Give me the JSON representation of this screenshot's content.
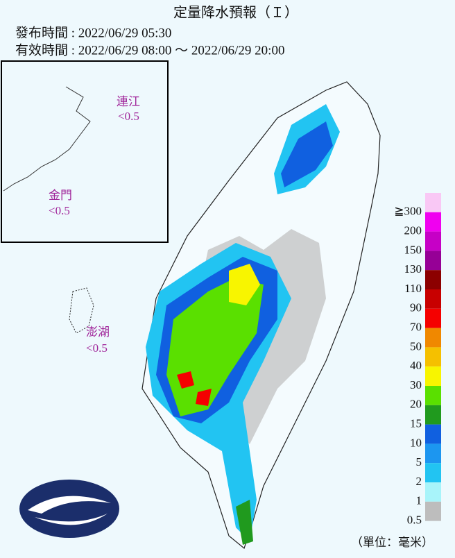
{
  "header": {
    "title": "定量降水預報（Ｉ）",
    "issued": "發布時間 : 2022/06/29 05:30",
    "valid": "有效時間 : 2022/06/29 08:00 ～ 2022/06/29 20:00"
  },
  "islands": [
    {
      "name": "連江",
      "value": "<0.5"
    },
    {
      "name": "金門",
      "value": "<0.5"
    },
    {
      "name": "澎湖",
      "value": "<0.5"
    }
  ],
  "legend": {
    "unit": "（單位：毫米）",
    "entries": [
      {
        "label": "≧300",
        "color": "#f9c8f5"
      },
      {
        "label": "200",
        "color": "#f000f0"
      },
      {
        "label": "150",
        "color": "#c600c6"
      },
      {
        "label": "130",
        "color": "#960096"
      },
      {
        "label": "110",
        "color": "#8c0000"
      },
      {
        "label": "90",
        "color": "#c80000"
      },
      {
        "label": "70",
        "color": "#f50000"
      },
      {
        "label": "50",
        "color": "#f08800"
      },
      {
        "label": "40",
        "color": "#f5c000"
      },
      {
        "label": "30",
        "color": "#f8f500"
      },
      {
        "label": "20",
        "color": "#5ae000"
      },
      {
        "label": "15",
        "color": "#209a1e"
      },
      {
        "label": "10",
        "color": "#1060e0"
      },
      {
        "label": "5",
        "color": "#1c96f0"
      },
      {
        "label": "2",
        "color": "#22c4f2"
      },
      {
        "label": "1",
        "color": "#a8f4fa"
      },
      {
        "label": "0.5",
        "color": "#bdbdbd"
      }
    ]
  }
}
